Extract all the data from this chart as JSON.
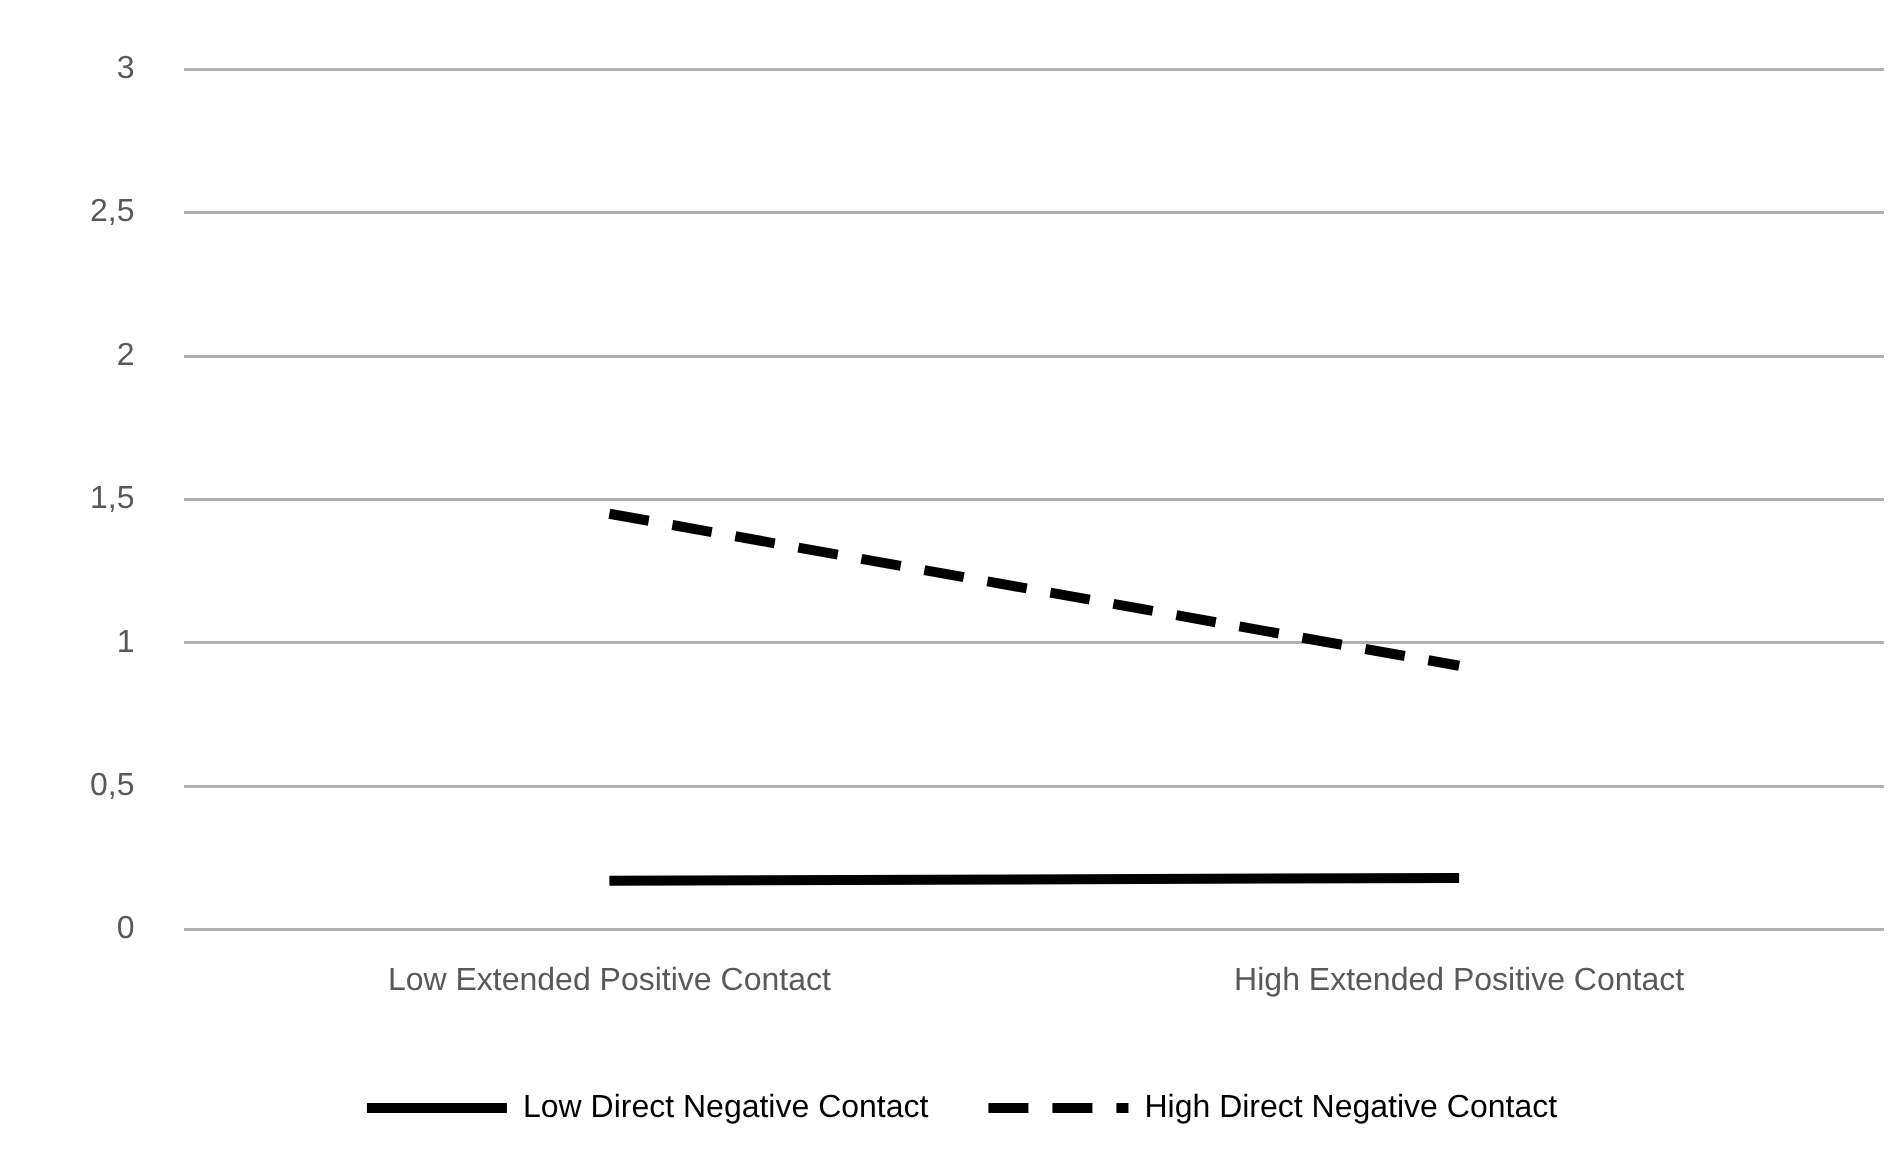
{
  "chart_data": {
    "type": "line",
    "categories": [
      "Low Extended Positive Contact",
      "High Extended Positive Contact"
    ],
    "series": [
      {
        "name": "Low Direct Negative Contact",
        "color": "#000000",
        "values": [
          0.17,
          0.18
        ],
        "line_style": "solid"
      },
      {
        "name": "High Direct Negative Contact",
        "color": "#000000",
        "values": [
          1.45,
          0.92
        ],
        "line_style": "dashed"
      }
    ],
    "ylim": [
      0,
      3
    ],
    "yticks": [
      0,
      {
        "value": 0.5,
        "label": "0,5"
      },
      1,
      {
        "value": 1.5,
        "label": "1,5"
      },
      2,
      {
        "value": 2.5,
        "label": "2,5"
      },
      3
    ],
    "grid": "y",
    "legend": "bottom",
    "marker": "none"
  }
}
